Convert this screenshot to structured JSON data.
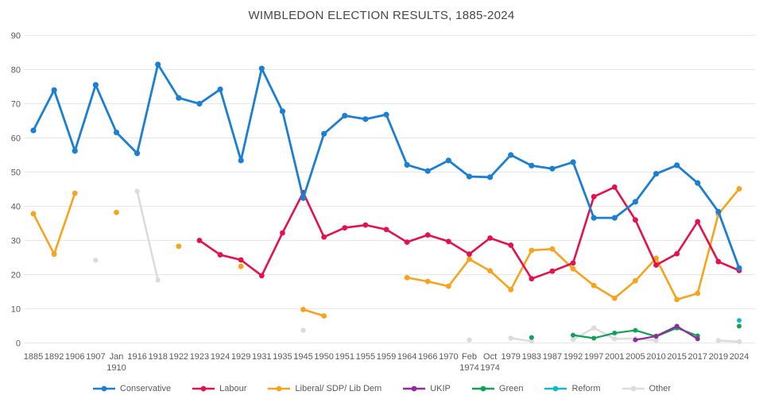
{
  "title": "WIMBLEDON ELECTION RESULTS, 1885-2024",
  "colors": {
    "background": "#ffffff",
    "grid": "#e7e7e7",
    "axis_text": "#595959",
    "title_text": "#474747",
    "conservative": "#1b7fd3",
    "labour": "#e3124d",
    "libdem": "#f7a31c",
    "ukip": "#92299e",
    "green": "#0fa157",
    "reform": "#12bac9",
    "other": "#dcdcdc"
  },
  "chart_data": {
    "type": "line",
    "title": "WIMBLEDON ELECTION RESULTS, 1885-2024",
    "xlabel": "",
    "ylabel": "",
    "ylim": [
      0,
      90
    ],
    "yticks": [
      0,
      10,
      20,
      30,
      40,
      50,
      60,
      70,
      80,
      90
    ],
    "grid": "horizontal",
    "legend_position": "bottom",
    "categories": [
      "1885",
      "1892",
      "1906",
      "1907",
      "Jan 1910",
      "1916",
      "1918",
      "1922",
      "1923",
      "1924",
      "1929",
      "1931",
      "1935",
      "1945",
      "1950",
      "1951",
      "1955",
      "1959",
      "1964",
      "1966",
      "1970",
      "Feb 1974",
      "Oct 1974",
      "1979",
      "1983",
      "1987",
      "1992",
      "1997",
      "2001",
      "2005",
      "2010",
      "2015",
      "2017",
      "2019",
      "2024"
    ],
    "series": [
      {
        "name": "Conservative",
        "color": "#1b7fd3",
        "values": [
          62.2,
          74.0,
          56.2,
          75.5,
          61.6,
          55.5,
          81.5,
          71.7,
          70.0,
          74.2,
          53.4,
          80.3,
          67.8,
          42.4,
          61.2,
          66.5,
          65.5,
          66.8,
          52.1,
          50.3,
          53.4,
          48.7,
          48.5,
          55.0,
          51.9,
          51.0,
          52.9,
          36.6,
          36.6,
          41.3,
          49.5,
          52.0,
          46.8,
          38.4,
          21.9
        ]
      },
      {
        "name": "Labour",
        "color": "#e3124d",
        "values": [
          null,
          null,
          null,
          null,
          null,
          null,
          null,
          null,
          30.0,
          25.8,
          24.3,
          19.7,
          32.2,
          44.0,
          31.0,
          33.7,
          34.5,
          33.2,
          29.5,
          31.6,
          29.7,
          26.0,
          30.7,
          28.6,
          18.8,
          21.0,
          23.4,
          42.8,
          45.6,
          36.0,
          22.8,
          26.1,
          35.5,
          23.8,
          21.2
        ]
      },
      {
        "name": "Liberal/ SDP/ Lib Dem",
        "color": "#f7a31c",
        "values": [
          37.8,
          26.0,
          43.8,
          null,
          38.2,
          null,
          null,
          28.3,
          null,
          null,
          22.4,
          null,
          null,
          9.8,
          7.9,
          null,
          null,
          null,
          19.1,
          18.0,
          16.6,
          24.5,
          21.1,
          15.6,
          27.1,
          27.5,
          21.7,
          16.8,
          13.1,
          18.2,
          24.8,
          12.7,
          14.5,
          37.7,
          45.1
        ]
      },
      {
        "name": "UKIP",
        "color": "#92299e",
        "values": [
          null,
          null,
          null,
          null,
          null,
          null,
          null,
          null,
          null,
          null,
          null,
          null,
          null,
          null,
          null,
          null,
          null,
          null,
          null,
          null,
          null,
          null,
          null,
          null,
          null,
          null,
          null,
          null,
          null,
          0.9,
          2.0,
          4.9,
          1.2,
          null,
          null
        ]
      },
      {
        "name": "Green",
        "color": "#0fa157",
        "values": [
          null,
          null,
          null,
          null,
          null,
          null,
          null,
          null,
          null,
          null,
          null,
          null,
          null,
          null,
          null,
          null,
          null,
          null,
          null,
          null,
          null,
          null,
          null,
          null,
          1.6,
          null,
          2.3,
          1.4,
          2.9,
          3.7,
          1.9,
          4.4,
          2.1,
          null,
          4.9
        ]
      },
      {
        "name": "Reform",
        "color": "#12bac9",
        "values": [
          null,
          null,
          null,
          null,
          null,
          null,
          null,
          null,
          null,
          null,
          null,
          null,
          null,
          null,
          null,
          null,
          null,
          null,
          null,
          null,
          null,
          null,
          null,
          null,
          null,
          null,
          null,
          null,
          null,
          null,
          null,
          null,
          null,
          null,
          6.6
        ]
      },
      {
        "name": "Other",
        "color": "#dcdcdc",
        "values": [
          null,
          null,
          null,
          24.2,
          null,
          44.4,
          18.4,
          null,
          null,
          null,
          null,
          null,
          null,
          3.7,
          null,
          null,
          null,
          null,
          null,
          null,
          null,
          0.9,
          null,
          1.4,
          0.5,
          null,
          1.0,
          4.4,
          1.2,
          1.3,
          0.7,
          null,
          null,
          0.7,
          0.4
        ]
      }
    ]
  }
}
